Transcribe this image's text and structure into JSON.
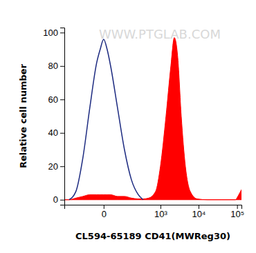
{
  "chart_data": {
    "type": "area",
    "x_label": "CL594-65189 CD41(MWReg30)",
    "y_label": "Relative cell number",
    "annotations": [
      "WWW.PTGLAB.COM"
    ],
    "log": "x",
    "x": [
      -330,
      -241,
      -148,
      -86,
      -45,
      -18,
      -8,
      0,
      8,
      18,
      45,
      86,
      148,
      241,
      334,
      478,
      741,
      1000,
      1407,
      1892,
      2334,
      2877,
      3546,
      4554,
      6090,
      9230,
      17175,
      39300,
      89800,
      110600,
      130000
    ],
    "series": [
      {
        "type": "line",
        "color": "#1c2a80",
        "values": [
          null,
          0,
          5,
          25,
          55,
          82,
          90,
          96,
          90,
          80,
          55,
          30,
          12,
          3,
          0,
          null,
          null,
          null,
          null,
          null,
          null,
          null,
          null,
          null,
          null,
          null,
          null,
          null,
          null,
          null,
          null
        ]
      },
      {
        "type": "area",
        "color": "#ff0000",
        "values": [
          0,
          0,
          1,
          2,
          3,
          3,
          3,
          3,
          3,
          3,
          2,
          2,
          1,
          0.5,
          0.5,
          1,
          5,
          20,
          50,
          80,
          97,
          85,
          50,
          20,
          5,
          0.5,
          0,
          0,
          0,
          3,
          6
        ]
      }
    ],
    "xlim": [
      -330,
      130000
    ],
    "xticks": [
      0,
      {
        "value": 1000,
        "label": "10³"
      },
      {
        "value": 10000,
        "label": "10⁴"
      },
      {
        "value": 100000,
        "label": "10⁵"
      }
    ],
    "ylim": [
      -3,
      103
    ],
    "yticks": [
      0,
      20,
      40,
      60,
      80,
      100
    ]
  }
}
